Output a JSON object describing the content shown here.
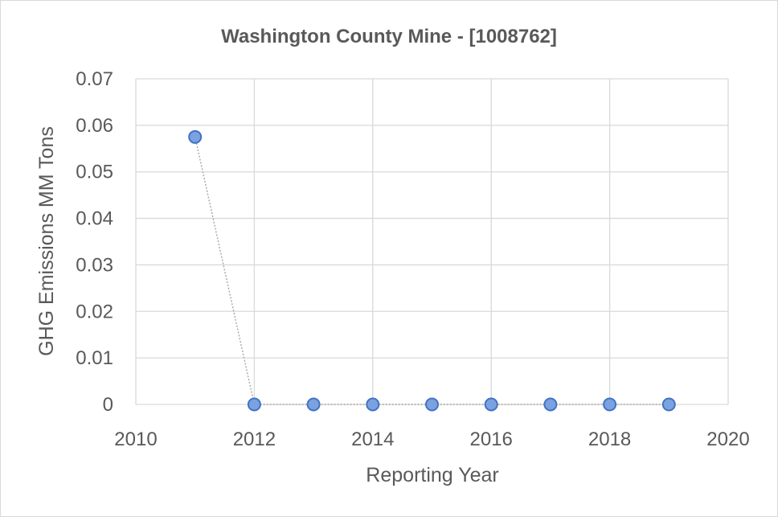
{
  "chart_data": {
    "type": "scatter",
    "title": "Washington County Mine - [1008762]",
    "xlabel": "Reporting Year",
    "ylabel": "GHG Emissions MM Tons",
    "xlim": [
      2010,
      2020
    ],
    "ylim": [
      0,
      0.07
    ],
    "xticks": [
      "2010",
      "2012",
      "2014",
      "2016",
      "2018",
      "2020"
    ],
    "yticks": [
      "0",
      "0.01",
      "0.02",
      "0.03",
      "0.04",
      "0.05",
      "0.06",
      "0.07"
    ],
    "grid": true,
    "legend": "none",
    "connect_points": "dotted",
    "series": [
      {
        "x": [
          2011,
          2012,
          2013,
          2014,
          2015,
          2016,
          2017,
          2018,
          2019
        ],
        "y": [
          0.0575,
          0,
          0,
          0,
          0,
          0,
          0,
          0,
          0
        ],
        "marker_color": "#7aa2e0",
        "marker_edge_color": "#4472c4",
        "line_color": "#a6a6a6"
      }
    ]
  }
}
